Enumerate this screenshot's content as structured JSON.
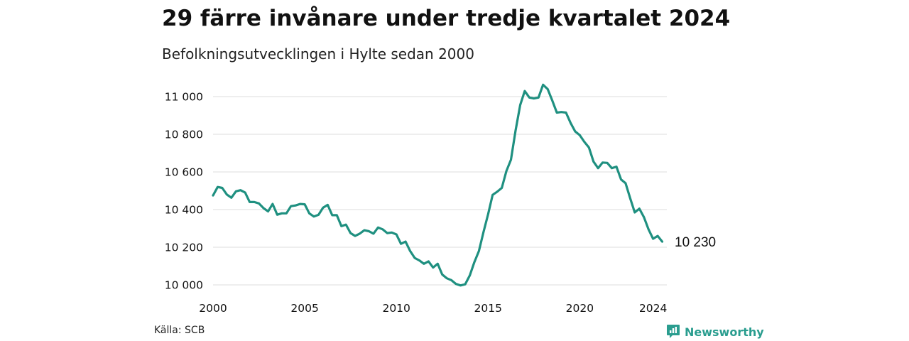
{
  "header": {
    "title": "29 färre invånare under tredje kvartalet 2024",
    "subtitle": "Befolkningsutvecklingen i Hylte sedan 2000"
  },
  "footer": {
    "source": "Källa: SCB",
    "brand": "Newsworthy"
  },
  "colors": {
    "line": "#1f9080",
    "grid": "#dddddd",
    "brand": "#2a9d8f"
  },
  "icons": {
    "brand": "newsworthy-logo-icon"
  },
  "chart_data": {
    "type": "line",
    "title": "29 färre invånare under tredje kvartalet 2024",
    "subtitle": "Befolkningsutvecklingen i Hylte sedan 2000",
    "xlabel": "",
    "ylabel": "",
    "xlim": [
      2000,
      2024.75
    ],
    "ylim": [
      9990,
      11060
    ],
    "x_ticks": [
      2000,
      2005,
      2010,
      2015,
      2020,
      2024
    ],
    "x_tick_labels": [
      "2000",
      "2005",
      "2010",
      "2015",
      "2020",
      "2024"
    ],
    "y_ticks": [
      10000,
      10200,
      10400,
      10600,
      10800,
      11000
    ],
    "y_tick_labels": [
      "10 000",
      "10 200",
      "10 400",
      "10 600",
      "10 800",
      "11 000"
    ],
    "grid": true,
    "legend": "none",
    "end_label": "10 230",
    "series": [
      {
        "values": [
          [
            2000.0,
            10475
          ],
          [
            2000.25,
            10520
          ],
          [
            2000.5,
            10515
          ],
          [
            2000.75,
            10480
          ],
          [
            2001.0,
            10463
          ],
          [
            2001.25,
            10497
          ],
          [
            2001.5,
            10503
          ],
          [
            2001.75,
            10490
          ],
          [
            2002.0,
            10440
          ],
          [
            2002.25,
            10440
          ],
          [
            2002.5,
            10433
          ],
          [
            2002.75,
            10408
          ],
          [
            2003.0,
            10390
          ],
          [
            2003.25,
            10430
          ],
          [
            2003.5,
            10373
          ],
          [
            2003.75,
            10380
          ],
          [
            2004.0,
            10380
          ],
          [
            2004.25,
            10418
          ],
          [
            2004.5,
            10422
          ],
          [
            2004.75,
            10430
          ],
          [
            2005.0,
            10428
          ],
          [
            2005.25,
            10380
          ],
          [
            2005.5,
            10363
          ],
          [
            2005.75,
            10372
          ],
          [
            2006.0,
            10410
          ],
          [
            2006.25,
            10425
          ],
          [
            2006.5,
            10370
          ],
          [
            2006.75,
            10370
          ],
          [
            2007.0,
            10312
          ],
          [
            2007.25,
            10320
          ],
          [
            2007.5,
            10275
          ],
          [
            2007.75,
            10260
          ],
          [
            2008.0,
            10272
          ],
          [
            2008.25,
            10290
          ],
          [
            2008.5,
            10285
          ],
          [
            2008.75,
            10272
          ],
          [
            2009.0,
            10305
          ],
          [
            2009.25,
            10295
          ],
          [
            2009.5,
            10275
          ],
          [
            2009.75,
            10278
          ],
          [
            2010.0,
            10268
          ],
          [
            2010.25,
            10218
          ],
          [
            2010.5,
            10230
          ],
          [
            2010.75,
            10180
          ],
          [
            2011.0,
            10143
          ],
          [
            2011.25,
            10130
          ],
          [
            2011.5,
            10112
          ],
          [
            2011.75,
            10125
          ],
          [
            2012.0,
            10092
          ],
          [
            2012.25,
            10112
          ],
          [
            2012.5,
            10055
          ],
          [
            2012.75,
            10035
          ],
          [
            2013.0,
            10025
          ],
          [
            2013.25,
            10005
          ],
          [
            2013.5,
            9997
          ],
          [
            2013.75,
            10003
          ],
          [
            2014.0,
            10050
          ],
          [
            2014.25,
            10120
          ],
          [
            2014.5,
            10180
          ],
          [
            2014.75,
            10280
          ],
          [
            2015.0,
            10375
          ],
          [
            2015.25,
            10478
          ],
          [
            2015.5,
            10495
          ],
          [
            2015.75,
            10515
          ],
          [
            2016.0,
            10605
          ],
          [
            2016.25,
            10665
          ],
          [
            2016.5,
            10820
          ],
          [
            2016.75,
            10955
          ],
          [
            2017.0,
            11030
          ],
          [
            2017.25,
            10995
          ],
          [
            2017.5,
            10990
          ],
          [
            2017.75,
            10995
          ],
          [
            2018.0,
            11063
          ],
          [
            2018.25,
            11040
          ],
          [
            2018.5,
            10980
          ],
          [
            2018.75,
            10915
          ],
          [
            2019.0,
            10918
          ],
          [
            2019.25,
            10915
          ],
          [
            2019.5,
            10860
          ],
          [
            2019.75,
            10815
          ],
          [
            2020.0,
            10795
          ],
          [
            2020.25,
            10760
          ],
          [
            2020.5,
            10730
          ],
          [
            2020.75,
            10655
          ],
          [
            2021.0,
            10620
          ],
          [
            2021.25,
            10650
          ],
          [
            2021.5,
            10648
          ],
          [
            2021.75,
            10620
          ],
          [
            2022.0,
            10628
          ],
          [
            2022.25,
            10560
          ],
          [
            2022.5,
            10540
          ],
          [
            2022.75,
            10460
          ],
          [
            2023.0,
            10385
          ],
          [
            2023.25,
            10405
          ],
          [
            2023.5,
            10360
          ],
          [
            2023.75,
            10295
          ],
          [
            2024.0,
            10245
          ],
          [
            2024.25,
            10260
          ],
          [
            2024.5,
            10230
          ]
        ]
      }
    ]
  }
}
